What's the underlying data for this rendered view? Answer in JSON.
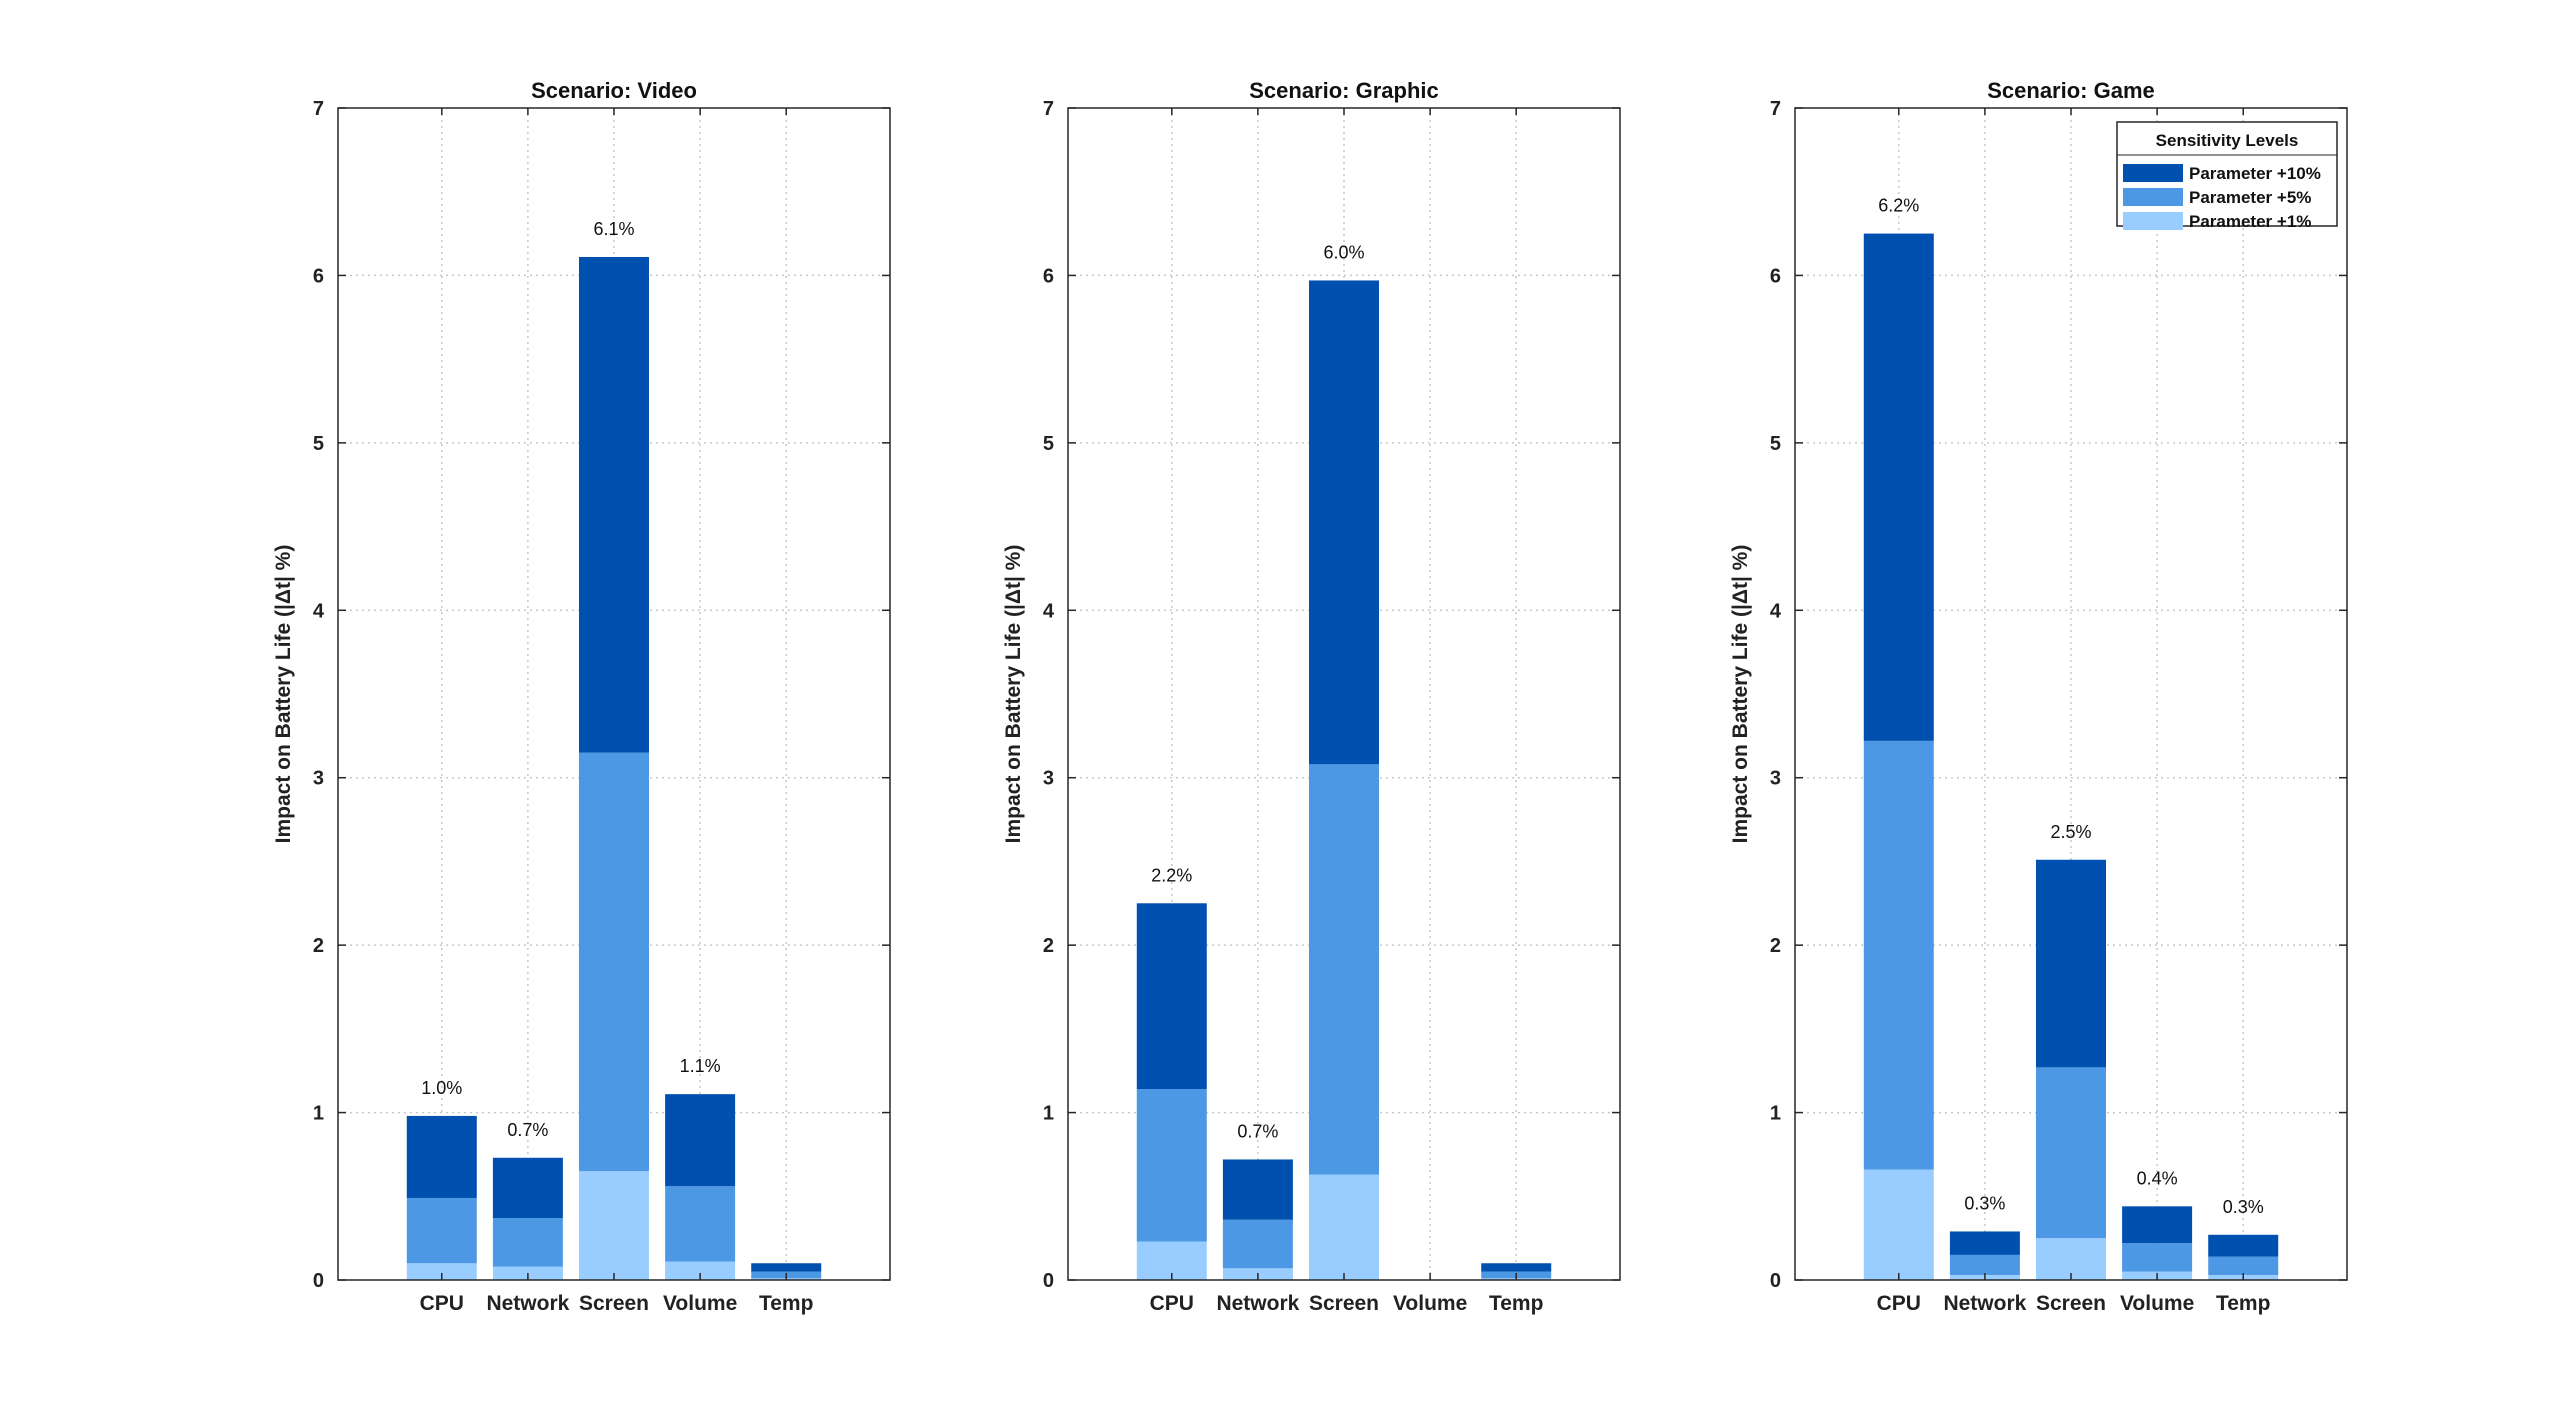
{
  "chart_data": [
    {
      "type": "bar",
      "stacked": true,
      "title": "Scenario: Video",
      "ylabel": "Impact on Battery Life (|Δt| %)",
      "xlabel": "",
      "ylim": [
        0,
        7
      ],
      "yticks": [
        0,
        1,
        2,
        3,
        4,
        5,
        6,
        7
      ],
      "grid": true,
      "categories": [
        "CPU",
        "Network",
        "Screen",
        "Volume",
        "Temp"
      ],
      "series": [
        {
          "name": "Parameter +1%",
          "values": [
            0.1,
            0.08,
            0.65,
            0.11,
            0.01
          ]
        },
        {
          "name": "Parameter +5%",
          "values": [
            0.39,
            0.29,
            2.5,
            0.45,
            0.04
          ]
        },
        {
          "name": "Parameter +10%",
          "values": [
            0.49,
            0.36,
            2.96,
            0.55,
            0.05
          ]
        }
      ],
      "bar_labels": [
        "1.0%",
        "0.7%",
        "6.1%",
        "1.1%",
        ""
      ]
    },
    {
      "type": "bar",
      "stacked": true,
      "title": "Scenario: Graphic",
      "ylabel": "Impact on Battery Life (|Δt| %)",
      "xlabel": "",
      "ylim": [
        0,
        7
      ],
      "yticks": [
        0,
        1,
        2,
        3,
        4,
        5,
        6,
        7
      ],
      "grid": true,
      "categories": [
        "CPU",
        "Network",
        "Screen",
        "Volume",
        "Temp"
      ],
      "series": [
        {
          "name": "Parameter +1%",
          "values": [
            0.23,
            0.07,
            0.63,
            0,
            0.01
          ]
        },
        {
          "name": "Parameter +5%",
          "values": [
            0.91,
            0.29,
            2.45,
            0,
            0.04
          ]
        },
        {
          "name": "Parameter +10%",
          "values": [
            1.11,
            0.36,
            2.89,
            0,
            0.05
          ]
        }
      ],
      "bar_labels": [
        "2.2%",
        "0.7%",
        "6.0%",
        "",
        ""
      ]
    },
    {
      "type": "bar",
      "stacked": true,
      "title": "Scenario: Game",
      "ylabel": "Impact on Battery Life (|Δt| %)",
      "xlabel": "",
      "ylim": [
        0,
        7
      ],
      "yticks": [
        0,
        1,
        2,
        3,
        4,
        5,
        6,
        7
      ],
      "grid": true,
      "categories": [
        "CPU",
        "Network",
        "Screen",
        "Volume",
        "Temp"
      ],
      "series": [
        {
          "name": "Parameter +1%",
          "values": [
            0.66,
            0.03,
            0.25,
            0.05,
            0.03
          ]
        },
        {
          "name": "Parameter +5%",
          "values": [
            2.56,
            0.12,
            1.02,
            0.17,
            0.11
          ]
        },
        {
          "name": "Parameter +10%",
          "values": [
            3.03,
            0.14,
            1.24,
            0.22,
            0.13
          ]
        }
      ],
      "bar_labels": [
        "6.2%",
        "0.3%",
        "2.5%",
        "0.4%",
        "0.3%"
      ],
      "legend": {
        "title": "Sensitivity Levels",
        "placement": "top-right",
        "entries": [
          "Parameter +10%",
          "Parameter +5%",
          "Parameter +1%"
        ]
      }
    }
  ],
  "colors": {
    "Parameter +10%": "#0050b0",
    "Parameter +5%": "#4d98e4",
    "Parameter +1%": "#99ccff",
    "grid": "#c8c8c8",
    "axis": "#262626"
  }
}
